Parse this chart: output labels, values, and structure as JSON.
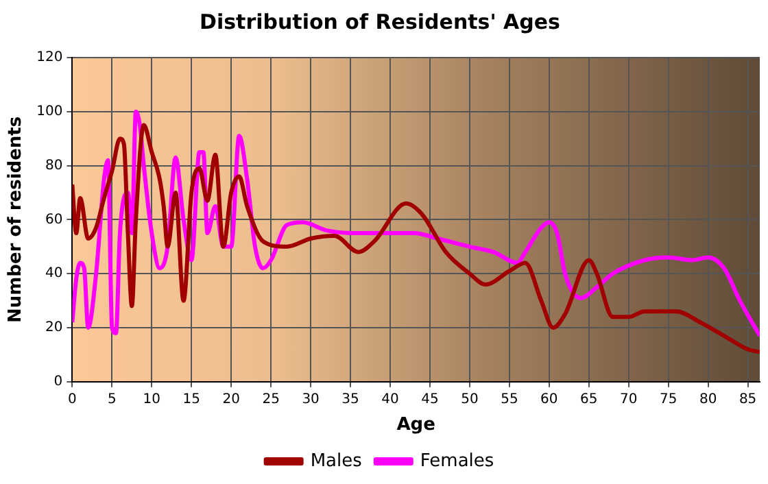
{
  "chart_data": {
    "type": "line",
    "title": "Distribution of Residents' Ages",
    "xlabel": "Age",
    "ylabel": "Number of residents",
    "xlim": [
      0,
      86.5
    ],
    "xticks": [
      0,
      5,
      10,
      15,
      20,
      25,
      30,
      35,
      40,
      45,
      50,
      55,
      60,
      65,
      70,
      75,
      80,
      85
    ],
    "ylim": [
      0,
      120
    ],
    "yticks": [
      0,
      20,
      40,
      60,
      80,
      100,
      120
    ],
    "grid": true,
    "legend": "bottom",
    "marker": "none",
    "line_style": "solid",
    "series": [
      {
        "name": "Males",
        "color": "#a00000",
        "x": [
          0,
          0.5,
          1,
          2,
          3,
          4,
          5,
          6,
          6.5,
          7,
          7.5,
          8,
          9,
          10,
          11,
          11.5,
          12,
          13,
          14,
          15,
          16,
          17,
          18,
          19,
          20,
          21,
          22,
          24,
          27,
          30,
          33,
          36,
          38,
          42,
          44,
          47,
          50,
          52,
          55,
          57,
          59,
          60.5,
          62,
          65,
          66,
          68,
          70,
          72,
          76,
          79,
          82,
          85,
          86.5
        ],
        "values": [
          73,
          55,
          68,
          53,
          57,
          68,
          78,
          90,
          88,
          55,
          28,
          60,
          95,
          85,
          75,
          65,
          50,
          70,
          30,
          70,
          79,
          67,
          84,
          50,
          70,
          76,
          65,
          52,
          50,
          53,
          54,
          48,
          52,
          66,
          62,
          48,
          40,
          36,
          41,
          44,
          30,
          20,
          25,
          45,
          40,
          24,
          24,
          26,
          26,
          22,
          17,
          12,
          11
        ]
      },
      {
        "name": "Females",
        "color": "#ff00ff",
        "x": [
          0,
          0.5,
          1,
          1.5,
          2,
          3,
          4,
          4.5,
          5,
          5.5,
          6,
          7,
          7.5,
          8,
          8.5,
          9,
          10,
          11,
          12,
          13,
          14,
          15,
          16,
          16.5,
          17,
          18,
          19,
          20,
          21,
          22,
          23,
          24,
          25,
          27,
          29,
          32,
          36,
          40,
          43,
          46,
          50,
          53,
          56,
          57,
          59,
          60,
          61,
          62,
          63,
          64,
          66,
          68,
          72,
          75,
          78,
          80,
          82,
          84,
          86.5
        ],
        "values": [
          22,
          38,
          44,
          42,
          20,
          40,
          75,
          82,
          20,
          18,
          55,
          70,
          55,
          100,
          95,
          80,
          55,
          42,
          50,
          83,
          60,
          45,
          85,
          85,
          55,
          65,
          50,
          50,
          91,
          75,
          50,
          42,
          45,
          58,
          59,
          56,
          55,
          55,
          55,
          53,
          50,
          48,
          44,
          48,
          57,
          59,
          55,
          40,
          33,
          31,
          35,
          40,
          45,
          46,
          45,
          46,
          42,
          30,
          17
        ]
      }
    ]
  }
}
